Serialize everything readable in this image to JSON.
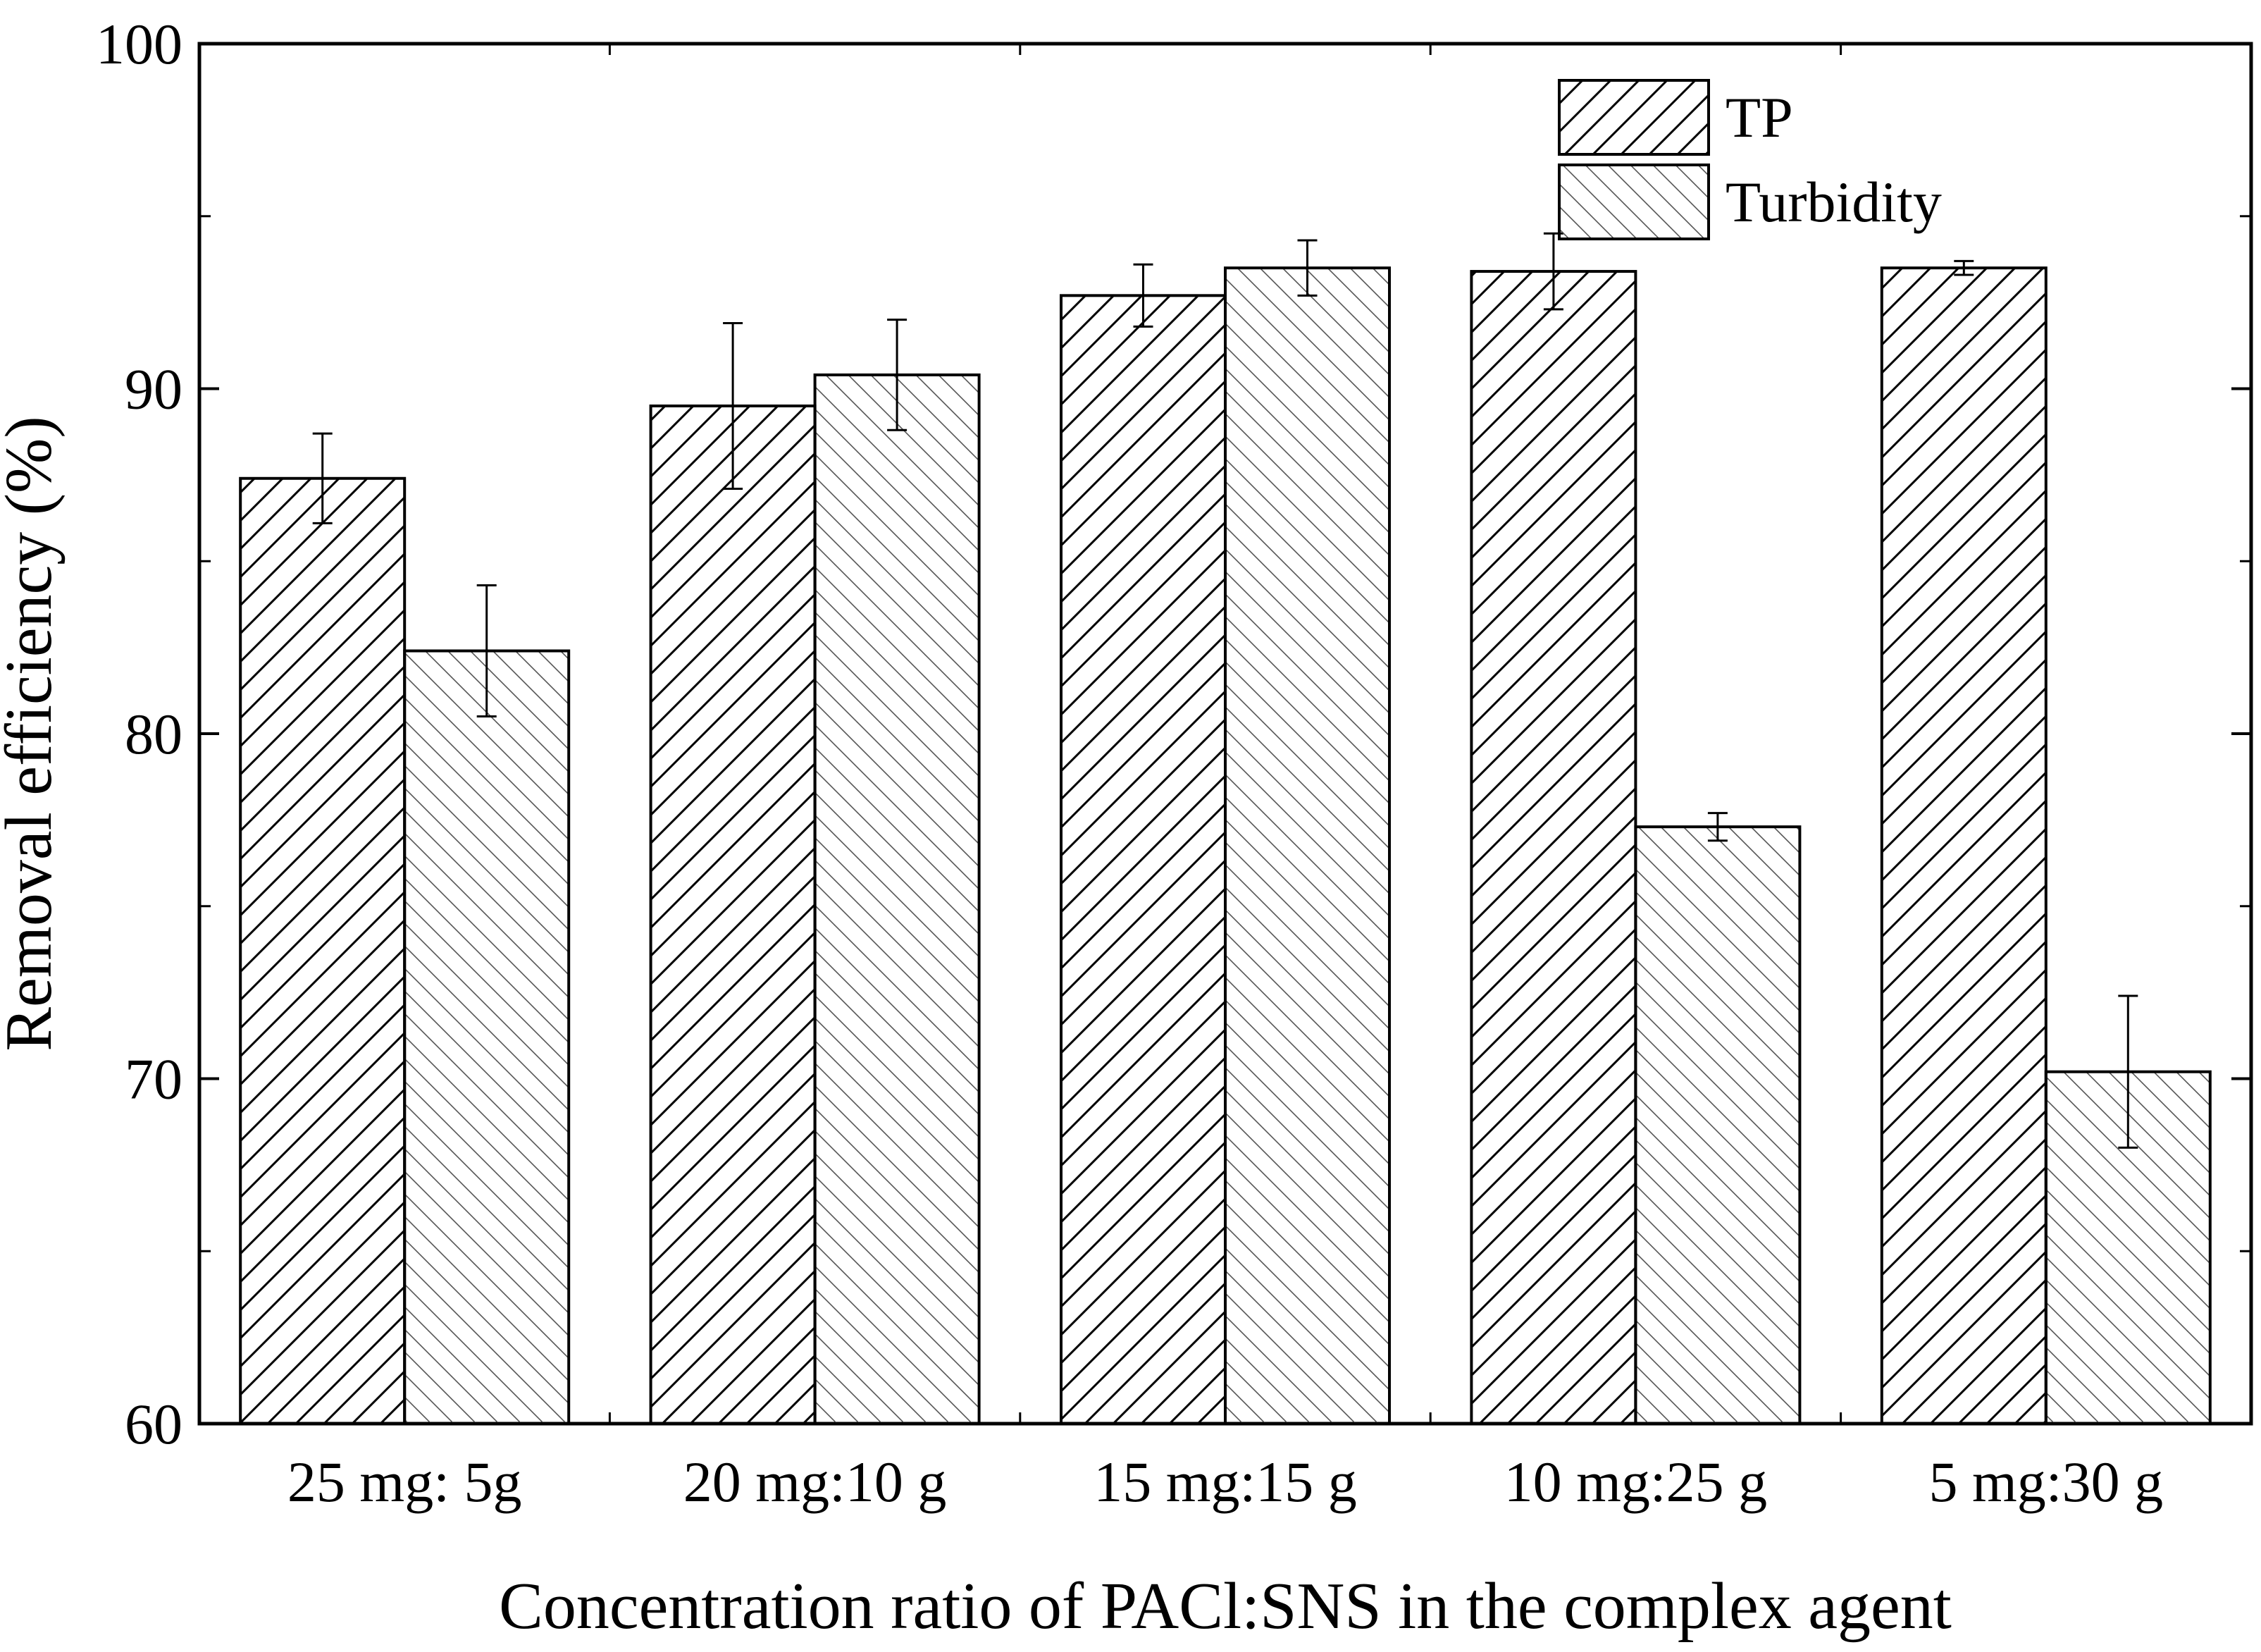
{
  "chart_data": {
    "type": "bar",
    "categories": [
      "25 mg: 5g",
      "20 mg:10 g",
      "15 mg:15 g",
      "10 mg:25 g",
      "5 mg:30 g"
    ],
    "series": [
      {
        "name": "TP",
        "values": [
          87.4,
          89.5,
          92.7,
          93.4,
          93.5
        ],
        "errors": [
          1.3,
          2.4,
          0.9,
          1.1,
          0.2
        ],
        "pattern": "forward-hatch-dense"
      },
      {
        "name": "Turbidity",
        "values": [
          82.4,
          90.4,
          93.5,
          77.3,
          70.2
        ],
        "errors": [
          1.9,
          1.6,
          0.8,
          0.4,
          2.2
        ],
        "pattern": "back-hatch-light"
      }
    ],
    "title": "",
    "xlabel": "Concentration ratio of PACl:SNS in the complex agent",
    "ylabel": "Removal efficiency (%)",
    "ylim": [
      60,
      100
    ],
    "yticks": [
      60,
      70,
      80,
      90,
      100
    ],
    "yticks_minor": [
      65,
      75,
      85,
      95
    ],
    "legend_position": "top-right",
    "grid": false
  }
}
